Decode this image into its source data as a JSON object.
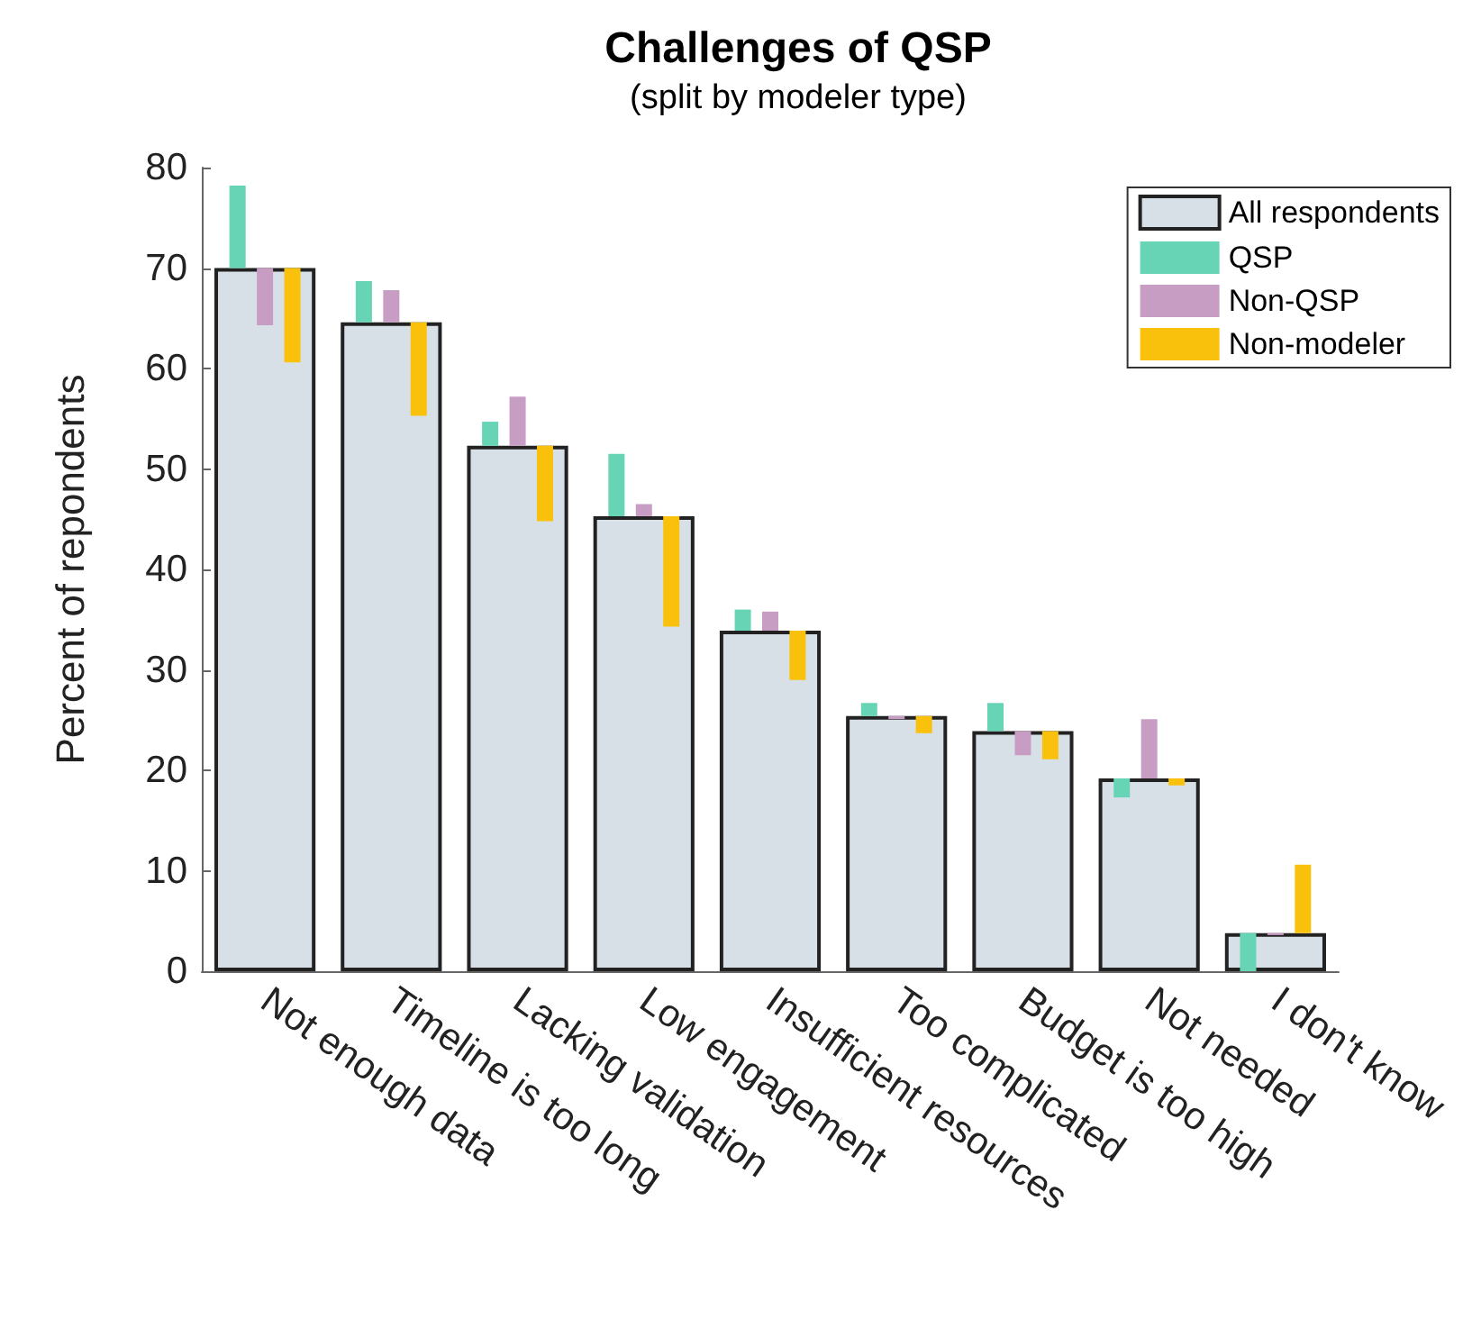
{
  "chart_data": {
    "type": "bar",
    "title": "Challenges of QSP",
    "subtitle": "(split by modeler type)",
    "ylabel": "Percent of repondents",
    "categories": [
      "Not enough data",
      "Timeline is too long",
      "Lacking validation",
      "Low engagement",
      "Insufficient resources",
      "Too complicated",
      "Budget is too high",
      "Not needed",
      "I don't know"
    ],
    "series": [
      {
        "name": "All respondents",
        "color": "#d8e0e7",
        "values": [
          70.0,
          64.6,
          52.3,
          45.3,
          33.9,
          25.4,
          23.9,
          19.2,
          3.8
        ]
      },
      {
        "name": "QSP",
        "color": "#66d4b5",
        "base": [
          70.0,
          64.6,
          52.3,
          45.3,
          33.9,
          25.4,
          23.9,
          19.2,
          3.8
        ],
        "values": [
          8.2,
          4.1,
          2.4,
          6.2,
          2.1,
          1.3,
          2.8,
          -1.9,
          -3.8
        ]
      },
      {
        "name": "Non-QSP",
        "color": "#c89dc4",
        "base": [
          70.0,
          64.6,
          52.3,
          45.3,
          33.9,
          25.4,
          23.9,
          19.2,
          3.8
        ],
        "values": [
          -5.7,
          3.2,
          4.9,
          1.2,
          1.9,
          -0.3,
          -2.4,
          5.9,
          -0.2
        ]
      },
      {
        "name": "Non-modeler",
        "color": "#f9c10b",
        "base": [
          70.0,
          64.6,
          52.3,
          45.3,
          33.9,
          25.4,
          23.9,
          19.2,
          3.8
        ],
        "values": [
          -9.4,
          -9.3,
          -7.5,
          -11.0,
          -4.9,
          -1.7,
          -2.8,
          -0.7,
          6.8
        ]
      }
    ],
    "ylim": [
      0,
      80
    ],
    "yticks": [
      0,
      10,
      20,
      30,
      40,
      50,
      60,
      70,
      80
    ],
    "grid": false,
    "legend": "top right"
  }
}
